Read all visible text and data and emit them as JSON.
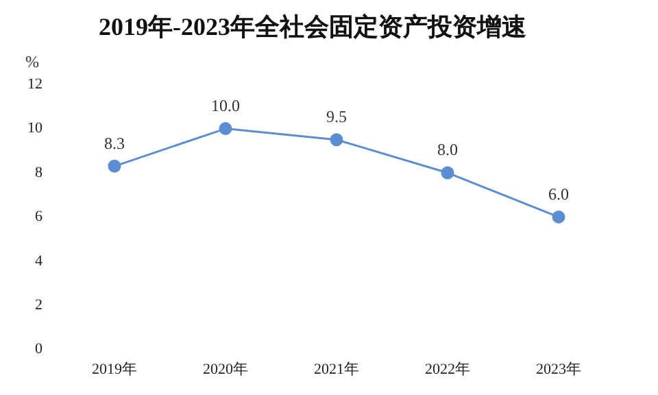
{
  "chart_data": {
    "type": "line",
    "title": "2019年-2023年全社会固定资产投资增速",
    "ylabel": "%",
    "categories": [
      "2019年",
      "2020年",
      "2021年",
      "2022年",
      "2023年"
    ],
    "series": [
      {
        "color": "#5b8ed0",
        "values": [
          8.3,
          10.0,
          9.5,
          8.0,
          6.0
        ],
        "value_labels": [
          "8.3",
          "10.0",
          "9.5",
          "8.0",
          "6.0"
        ]
      }
    ],
    "ylim": [
      0,
      12
    ],
    "yticks": [
      0,
      2,
      4,
      6,
      8,
      10,
      12
    ],
    "grid": false,
    "legend": false,
    "marker": "circle",
    "line_style": "solid"
  }
}
